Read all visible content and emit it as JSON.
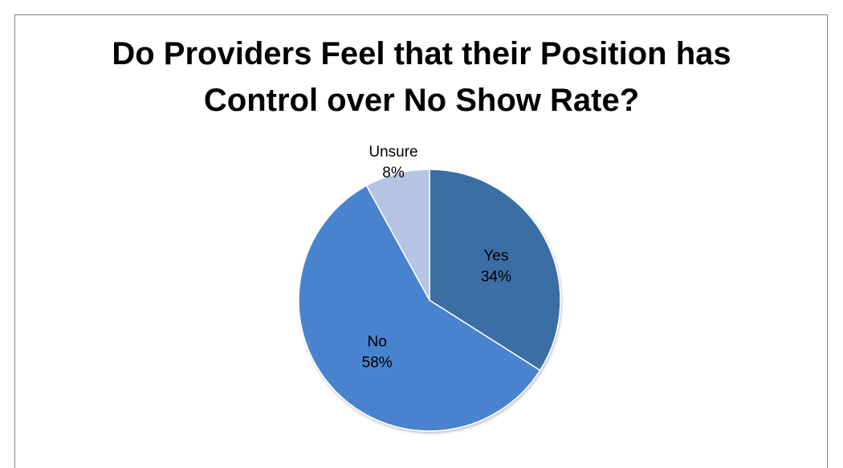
{
  "chart_data": {
    "type": "pie",
    "title_lines": [
      "Do Providers Feel that their Position has",
      "Control over No Show Rate?"
    ],
    "slices": [
      {
        "name": "Yes",
        "value": 34,
        "label": "34%",
        "color": "#3a6ea5"
      },
      {
        "name": "No",
        "value": 58,
        "label": "58%",
        "color": "#4a83cd"
      },
      {
        "name": "Unsure",
        "value": 8,
        "label": "8%",
        "color": "#b4c4e2"
      }
    ],
    "legend": "none",
    "data_labels": "category and percent"
  }
}
